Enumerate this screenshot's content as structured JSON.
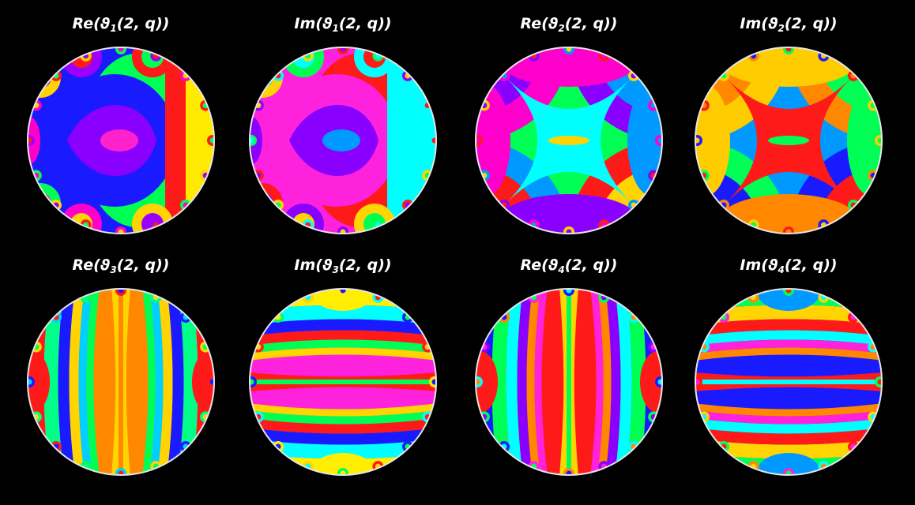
{
  "panels": [
    {
      "id": "re-theta1",
      "part": "Re",
      "index": "1",
      "args": "(2, q))",
      "pattern": "c",
      "base": "#1a1aff",
      "bands": [
        "#ff1a1a",
        "#ffd400",
        "#00ff55",
        "#9b00ff",
        "#ff00cc"
      ],
      "center_bands": [
        "#8a00ff",
        "#ff22cc"
      ],
      "edge": "#ffea00"
    },
    {
      "id": "im-theta1",
      "part": "Im",
      "index": "1",
      "args": "(2, q))",
      "pattern": "c",
      "base": "#ff22dd",
      "bands": [
        "#00ffff",
        "#ffd400",
        "#ff1a1a",
        "#00ff55",
        "#8a00ff"
      ],
      "center_bands": [
        "#8a00ff",
        "#0099ff"
      ],
      "edge": "#00ffff"
    },
    {
      "id": "re-theta2",
      "part": "Re",
      "index": "2",
      "args": "(2, q))",
      "pattern": "x",
      "base": "#00ff55",
      "bands": [
        "#ff00cc",
        "#8a00ff",
        "#0099ff",
        "#ff1a1a",
        "#ffd400"
      ],
      "center_bands": [
        "#00ffff",
        "#ffd400"
      ],
      "edge": "#ff00cc"
    },
    {
      "id": "im-theta2",
      "part": "Im",
      "index": "2",
      "args": "(2, q))",
      "pattern": "x",
      "base": "#0099ff",
      "bands": [
        "#ffcc00",
        "#ff8800",
        "#00ff55",
        "#1a1aff",
        "#ff1a1a"
      ],
      "center_bands": [
        "#ff1a1a",
        "#00ff55"
      ],
      "edge": "#ffcc00"
    },
    {
      "id": "re-theta3",
      "part": "Re",
      "index": "3",
      "args": "(2, q))",
      "pattern": "v",
      "base": "#ff8800",
      "bands": [
        "#ff1a1a",
        "#00ff88",
        "#1a1aff",
        "#ffd400",
        "#00cfff",
        "#00ff55"
      ],
      "center_bands": [
        "#ffd400",
        "#ff8800"
      ],
      "edge": "#ff1a1a"
    },
    {
      "id": "im-theta3",
      "part": "Im",
      "index": "3",
      "args": "(2, q))",
      "pattern": "h",
      "base": "#ff22dd",
      "bands": [
        "#ffee00",
        "#00ffff",
        "#1a1aff",
        "#ff1a1a",
        "#00ff55",
        "#ffd400"
      ],
      "center_bands": [
        "#ff1a1a",
        "#00ff55"
      ],
      "edge": "#ffee00"
    },
    {
      "id": "re-theta4",
      "part": "Re",
      "index": "4",
      "args": "(2, q))",
      "pattern": "v",
      "base": "#ff1a1a",
      "bands": [
        "#1a1aff",
        "#00ff55",
        "#00ffff",
        "#8a00ff",
        "#ff8800",
        "#ff22dd"
      ],
      "center_bands": [
        "#ffd400",
        "#00ff55"
      ],
      "edge": "#ff1a1a"
    },
    {
      "id": "im-theta4",
      "part": "Im",
      "index": "4",
      "args": "(2, q))",
      "pattern": "h",
      "base": "#1a1aff",
      "bands": [
        "#00ff55",
        "#ffd400",
        "#ff1a1a",
        "#00ffff",
        "#ff22dd",
        "#ff8800"
      ],
      "center_bands": [
        "#ff1a1a",
        "#00ffff"
      ],
      "edge": "#0099ff"
    }
  ],
  "rim_color": "#e6e6e6",
  "background": "#000000"
}
